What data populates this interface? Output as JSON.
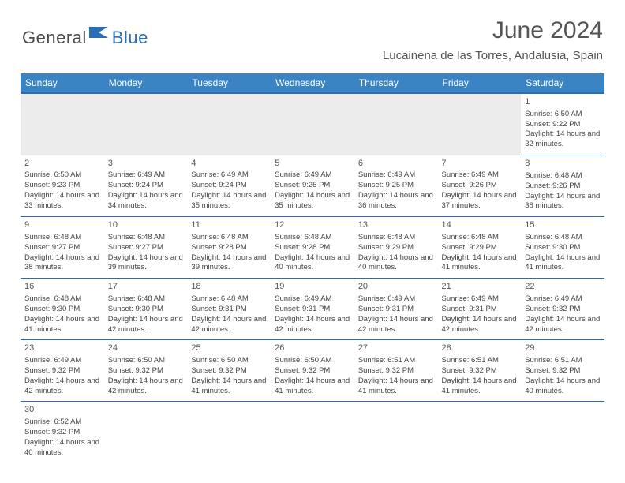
{
  "logo": {
    "part1": "General",
    "part2": "Blue"
  },
  "title": "June 2024",
  "location": "Lucainena de las Torres, Andalusia, Spain",
  "header_bg": "#3b84c4",
  "border_color": "#2a6db5",
  "weekdays": [
    "Sunday",
    "Monday",
    "Tuesday",
    "Wednesday",
    "Thursday",
    "Friday",
    "Saturday"
  ],
  "days": {
    "1": {
      "sr": "6:50 AM",
      "ss": "9:22 PM",
      "dl": "14 hours and 32 minutes."
    },
    "2": {
      "sr": "6:50 AM",
      "ss": "9:23 PM",
      "dl": "14 hours and 33 minutes."
    },
    "3": {
      "sr": "6:49 AM",
      "ss": "9:24 PM",
      "dl": "14 hours and 34 minutes."
    },
    "4": {
      "sr": "6:49 AM",
      "ss": "9:24 PM",
      "dl": "14 hours and 35 minutes."
    },
    "5": {
      "sr": "6:49 AM",
      "ss": "9:25 PM",
      "dl": "14 hours and 35 minutes."
    },
    "6": {
      "sr": "6:49 AM",
      "ss": "9:25 PM",
      "dl": "14 hours and 36 minutes."
    },
    "7": {
      "sr": "6:49 AM",
      "ss": "9:26 PM",
      "dl": "14 hours and 37 minutes."
    },
    "8": {
      "sr": "6:48 AM",
      "ss": "9:26 PM",
      "dl": "14 hours and 38 minutes."
    },
    "9": {
      "sr": "6:48 AM",
      "ss": "9:27 PM",
      "dl": "14 hours and 38 minutes."
    },
    "10": {
      "sr": "6:48 AM",
      "ss": "9:27 PM",
      "dl": "14 hours and 39 minutes."
    },
    "11": {
      "sr": "6:48 AM",
      "ss": "9:28 PM",
      "dl": "14 hours and 39 minutes."
    },
    "12": {
      "sr": "6:48 AM",
      "ss": "9:28 PM",
      "dl": "14 hours and 40 minutes."
    },
    "13": {
      "sr": "6:48 AM",
      "ss": "9:29 PM",
      "dl": "14 hours and 40 minutes."
    },
    "14": {
      "sr": "6:48 AM",
      "ss": "9:29 PM",
      "dl": "14 hours and 41 minutes."
    },
    "15": {
      "sr": "6:48 AM",
      "ss": "9:30 PM",
      "dl": "14 hours and 41 minutes."
    },
    "16": {
      "sr": "6:48 AM",
      "ss": "9:30 PM",
      "dl": "14 hours and 41 minutes."
    },
    "17": {
      "sr": "6:48 AM",
      "ss": "9:30 PM",
      "dl": "14 hours and 42 minutes."
    },
    "18": {
      "sr": "6:48 AM",
      "ss": "9:31 PM",
      "dl": "14 hours and 42 minutes."
    },
    "19": {
      "sr": "6:49 AM",
      "ss": "9:31 PM",
      "dl": "14 hours and 42 minutes."
    },
    "20": {
      "sr": "6:49 AM",
      "ss": "9:31 PM",
      "dl": "14 hours and 42 minutes."
    },
    "21": {
      "sr": "6:49 AM",
      "ss": "9:31 PM",
      "dl": "14 hours and 42 minutes."
    },
    "22": {
      "sr": "6:49 AM",
      "ss": "9:32 PM",
      "dl": "14 hours and 42 minutes."
    },
    "23": {
      "sr": "6:49 AM",
      "ss": "9:32 PM",
      "dl": "14 hours and 42 minutes."
    },
    "24": {
      "sr": "6:50 AM",
      "ss": "9:32 PM",
      "dl": "14 hours and 42 minutes."
    },
    "25": {
      "sr": "6:50 AM",
      "ss": "9:32 PM",
      "dl": "14 hours and 41 minutes."
    },
    "26": {
      "sr": "6:50 AM",
      "ss": "9:32 PM",
      "dl": "14 hours and 41 minutes."
    },
    "27": {
      "sr": "6:51 AM",
      "ss": "9:32 PM",
      "dl": "14 hours and 41 minutes."
    },
    "28": {
      "sr": "6:51 AM",
      "ss": "9:32 PM",
      "dl": "14 hours and 41 minutes."
    },
    "29": {
      "sr": "6:51 AM",
      "ss": "9:32 PM",
      "dl": "14 hours and 40 minutes."
    },
    "30": {
      "sr": "6:52 AM",
      "ss": "9:32 PM",
      "dl": "14 hours and 40 minutes."
    }
  },
  "labels": {
    "sunrise": "Sunrise:",
    "sunset": "Sunset:",
    "daylight": "Daylight:"
  },
  "grid": [
    [
      null,
      null,
      null,
      null,
      null,
      null,
      "1"
    ],
    [
      "2",
      "3",
      "4",
      "5",
      "6",
      "7",
      "8"
    ],
    [
      "9",
      "10",
      "11",
      "12",
      "13",
      "14",
      "15"
    ],
    [
      "16",
      "17",
      "18",
      "19",
      "20",
      "21",
      "22"
    ],
    [
      "23",
      "24",
      "25",
      "26",
      "27",
      "28",
      "29"
    ],
    [
      "30",
      null,
      null,
      null,
      null,
      null,
      null
    ]
  ]
}
